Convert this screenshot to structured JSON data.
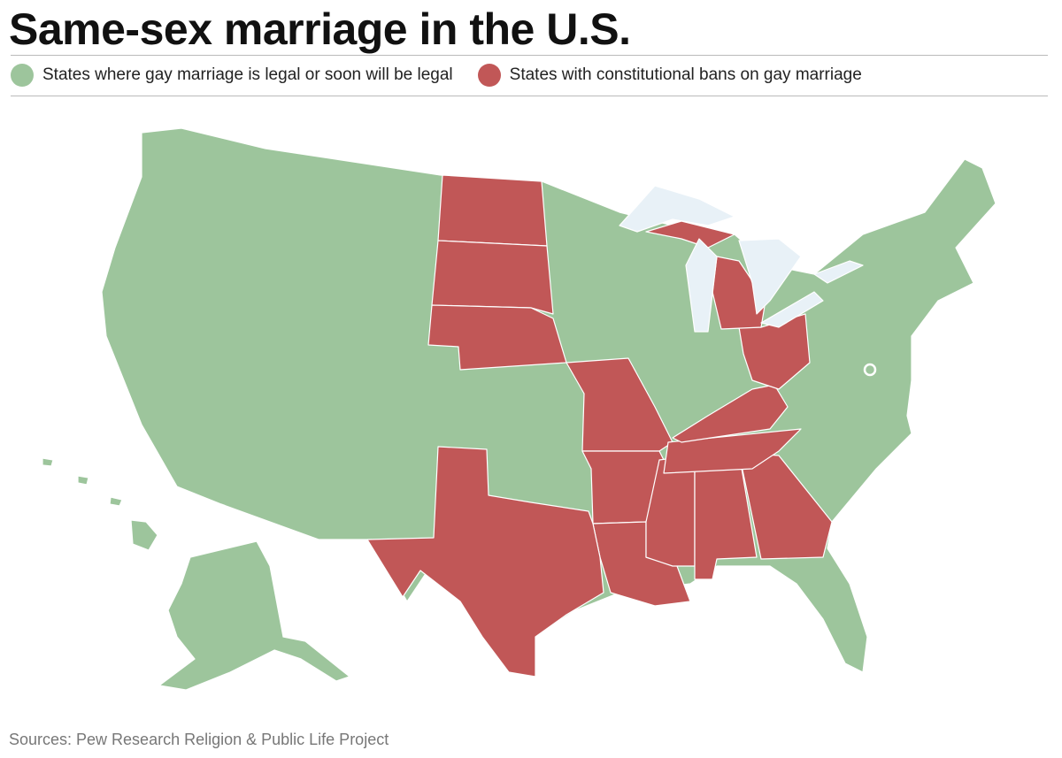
{
  "title": "Same-sex marriage in the U.S.",
  "legend": [
    {
      "label": "States where gay marriage is legal or soon will be legal",
      "color": "#9dc59c"
    },
    {
      "label": "States with constitutional bans on gay marriage",
      "color": "#c15757"
    }
  ],
  "source": "Sources: Pew Research Religion & Public Life Project"
}
